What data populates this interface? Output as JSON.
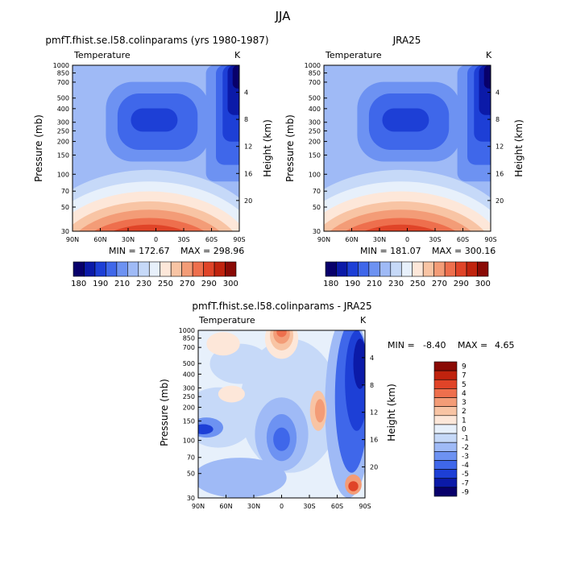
{
  "figure": {
    "season": "JJA",
    "panel_tag": "Temperature",
    "unit": "K",
    "pressure_axis_label": "Pressure (mb)",
    "height_axis_label": "Height (km)"
  },
  "colors": {
    "main_palette": [
      "#08006b",
      "#0b1aa8",
      "#1d3fd6",
      "#3f67ea",
      "#6d92f2",
      "#9fbaf6",
      "#c6d9f8",
      "#e7f0fb",
      "#fde7d9",
      "#f8c4a4",
      "#f39c77",
      "#ee6f4d",
      "#e04428",
      "#c0230e",
      "#8a0a05"
    ],
    "main_labels": [
      "180",
      "190",
      "210",
      "230",
      "250",
      "270",
      "290",
      "300"
    ],
    "diff_palette": [
      "#08006b",
      "#0b1aa8",
      "#1d3fd6",
      "#3f67ea",
      "#6d92f2",
      "#9fbaf6",
      "#c6d9f8",
      "#e7f0fb",
      "#fde7d9",
      "#f8c4a4",
      "#f39c77",
      "#ee6f4d",
      "#e04428",
      "#c0230e",
      "#8a0a05"
    ],
    "diff_labels": [
      "9",
      "7",
      "5",
      "4",
      "3",
      "2",
      "1",
      "0",
      "-1",
      "-2",
      "-3",
      "-4",
      "-5",
      "-7",
      "-9"
    ]
  },
  "chart_data": [
    {
      "type": "heatmap",
      "title": "pmfT.fhist.se.l58.colinparams (yrs 1980-1987)",
      "min_text": "MIN = 172.67",
      "max_text": "MAX = 298.96",
      "x_ticks": [
        "90N",
        "60N",
        "30N",
        "0",
        "30S",
        "60S",
        "90S"
      ],
      "x_range": [
        90,
        -90
      ],
      "y_ticks": [
        "30",
        "50",
        "70",
        "100",
        "150",
        "200",
        "250",
        "300",
        "400",
        "500",
        "700",
        "850",
        "1000"
      ],
      "y_range_mb": [
        1000,
        30
      ],
      "y_scale": "log",
      "height_ticks_km": [
        "20",
        "16",
        "12",
        "8",
        "4"
      ]
    },
    {
      "type": "heatmap",
      "title": "JRA25",
      "min_text": "MIN = 181.07",
      "max_text": "MAX = 300.16",
      "x_ticks": [
        "90N",
        "60N",
        "30N",
        "0",
        "30S",
        "60S",
        "90S"
      ],
      "x_range": [
        90,
        -90
      ],
      "y_ticks": [
        "30",
        "50",
        "70",
        "100",
        "150",
        "200",
        "250",
        "300",
        "400",
        "500",
        "700",
        "850",
        "1000"
      ],
      "y_range_mb": [
        1000,
        30
      ],
      "y_scale": "log",
      "height_ticks_km": [
        "20",
        "16",
        "12",
        "8",
        "4"
      ]
    },
    {
      "type": "heatmap",
      "title": "pmfT.fhist.se.l58.colinparams - JRA25",
      "min_label": "MIN =",
      "min_value": "-8.40",
      "max_label": "MAX =",
      "max_value": "4.65",
      "x_ticks": [
        "90N",
        "60N",
        "30N",
        "0",
        "30S",
        "60S",
        "90S"
      ],
      "x_range": [
        90,
        -90
      ],
      "y_ticks": [
        "30",
        "50",
        "70",
        "100",
        "150",
        "200",
        "250",
        "300",
        "400",
        "500",
        "700",
        "850",
        "1000"
      ],
      "y_range_mb": [
        1000,
        30
      ],
      "y_scale": "log",
      "height_ticks_km": [
        "20",
        "16",
        "12",
        "8",
        "4"
      ]
    }
  ]
}
